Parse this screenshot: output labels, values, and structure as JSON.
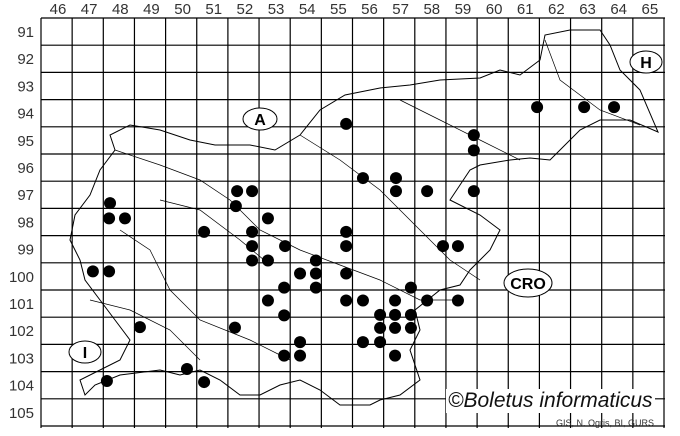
{
  "map": {
    "column_labels": [
      "46",
      "47",
      "48",
      "49",
      "50",
      "51",
      "52",
      "53",
      "54",
      "55",
      "56",
      "57",
      "58",
      "59",
      "60",
      "61",
      "62",
      "63",
      "64",
      "65"
    ],
    "row_labels": [
      "91",
      "92",
      "93",
      "94",
      "95",
      "96",
      "97",
      "98",
      "99",
      "100",
      "101",
      "102",
      "103",
      "104",
      "105"
    ],
    "region_labels": {
      "austria": "A",
      "hungary": "H",
      "croatia": "CRO",
      "italy": "I"
    },
    "copyright": "©Boletus informaticus",
    "credit": "GIS, N. Ogris, BI, GURS",
    "dot_color": "#000000",
    "occurrence_cells": [
      [
        47.67,
        97.29
      ],
      [
        47.64,
        97.85
      ],
      [
        48.15,
        97.85
      ],
      [
        51.75,
        96.85
      ],
      [
        52.23,
        96.85
      ],
      [
        51.71,
        97.4
      ],
      [
        52.74,
        97.85
      ],
      [
        50.69,
        98.35
      ],
      [
        52.23,
        98.35
      ],
      [
        52.23,
        98.87
      ],
      [
        53.29,
        98.87
      ],
      [
        52.23,
        99.4
      ],
      [
        52.74,
        99.4
      ],
      [
        55.25,
        98.35
      ],
      [
        55.25,
        98.87
      ],
      [
        47.12,
        99.8
      ],
      [
        47.64,
        99.8
      ],
      [
        54.28,
        99.4
      ],
      [
        54.28,
        99.88
      ],
      [
        53.77,
        99.88
      ],
      [
        54.28,
        100.4
      ],
      [
        53.26,
        100.4
      ],
      [
        52.74,
        100.87
      ],
      [
        53.26,
        101.42
      ],
      [
        48.63,
        101.85
      ],
      [
        51.68,
        101.87
      ],
      [
        53.77,
        102.4
      ],
      [
        53.26,
        102.9
      ],
      [
        53.77,
        102.9
      ],
      [
        50.14,
        103.39
      ],
      [
        50.69,
        103.87
      ],
      [
        47.57,
        103.83
      ],
      [
        55.25,
        94.38
      ],
      [
        55.79,
        96.37
      ],
      [
        56.85,
        96.37
      ],
      [
        56.85,
        96.85
      ],
      [
        57.85,
        96.85
      ],
      [
        59.35,
        96.85
      ],
      [
        59.35,
        94.79
      ],
      [
        59.35,
        95.35
      ],
      [
        61.38,
        93.76
      ],
      [
        62.89,
        93.76
      ],
      [
        63.85,
        93.76
      ],
      [
        58.36,
        98.87
      ],
      [
        58.84,
        98.87
      ],
      [
        55.25,
        99.88
      ],
      [
        57.33,
        100.4
      ],
      [
        55.25,
        100.87
      ],
      [
        55.79,
        100.87
      ],
      [
        56.82,
        100.87
      ],
      [
        57.85,
        100.87
      ],
      [
        58.84,
        100.87
      ],
      [
        56.34,
        101.4
      ],
      [
        56.82,
        101.4
      ],
      [
        57.33,
        101.4
      ],
      [
        56.34,
        101.88
      ],
      [
        56.82,
        101.88
      ],
      [
        57.33,
        101.88
      ],
      [
        55.79,
        102.4
      ],
      [
        56.34,
        102.4
      ],
      [
        56.82,
        102.9
      ]
    ]
  }
}
